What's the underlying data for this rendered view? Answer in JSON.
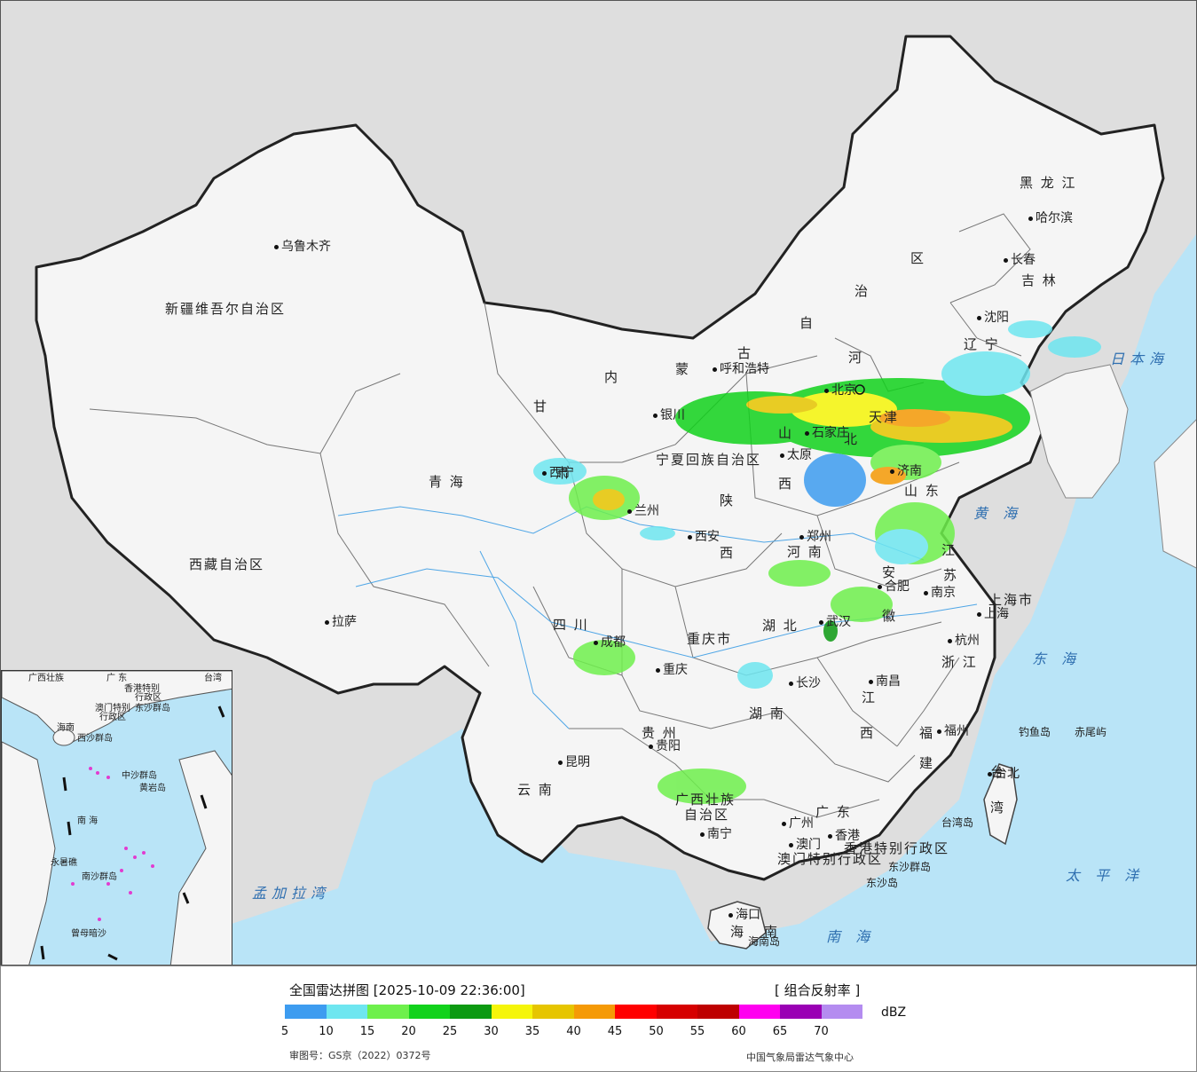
{
  "map": {
    "province_labels": [
      {
        "id": "xinjiang",
        "text": "新疆维吾尔自治区"
      },
      {
        "id": "xizang",
        "text": "西藏自治区"
      },
      {
        "id": "qinghai",
        "text": "青    海"
      },
      {
        "id": "gansu",
        "text": "甘"
      },
      {
        "id": "neimenggu-1",
        "text": "内"
      },
      {
        "id": "neimenggu-2",
        "text": "蒙"
      },
      {
        "id": "neimenggu-3",
        "text": "古"
      },
      {
        "id": "neimenggu-4",
        "text": "自"
      },
      {
        "id": "neimenggu-5",
        "text": "治"
      },
      {
        "id": "neimenggu-6",
        "text": "区"
      },
      {
        "id": "heilongjiang",
        "text": "黑 龙 江"
      },
      {
        "id": "jilin",
        "text": "吉 林"
      },
      {
        "id": "liaoning",
        "text": "辽 宁"
      },
      {
        "id": "hebei-1",
        "text": "河"
      },
      {
        "id": "hebei-2",
        "text": "北"
      },
      {
        "id": "shanxi-1",
        "text": "山"
      },
      {
        "id": "shanxi-2",
        "text": "西"
      },
      {
        "id": "shandong",
        "text": "山 东"
      },
      {
        "id": "ningxia",
        "text": "宁夏回族自治区"
      },
      {
        "id": "shaanxi-1",
        "text": "陕"
      },
      {
        "id": "shaanxi-2",
        "text": "西"
      },
      {
        "id": "henan",
        "text": "河 南"
      },
      {
        "id": "jiangsu-1",
        "text": "江"
      },
      {
        "id": "jiangsu-2",
        "text": "苏"
      },
      {
        "id": "anhui-1",
        "text": "安"
      },
      {
        "id": "anhui-2",
        "text": "徽"
      },
      {
        "id": "shanghai",
        "text": "上海市"
      },
      {
        "id": "hubei",
        "text": "湖  北"
      },
      {
        "id": "sichuan",
        "text": "四  川"
      },
      {
        "id": "chongqing",
        "text": "重庆市"
      },
      {
        "id": "zhejiang",
        "text": "浙 江"
      },
      {
        "id": "hunan",
        "text": "湖   南"
      },
      {
        "id": "jiangxi-1",
        "text": "江"
      },
      {
        "id": "jiangxi-2",
        "text": "西"
      },
      {
        "id": "guizhou",
        "text": "贵 州"
      },
      {
        "id": "fujian-1",
        "text": "福"
      },
      {
        "id": "fujian-2",
        "text": "建"
      },
      {
        "id": "yunnan",
        "text": "云   南"
      },
      {
        "id": "guangxi-1",
        "text": "广西壮族"
      },
      {
        "id": "guangxi-2",
        "text": "自治区"
      },
      {
        "id": "guangdong",
        "text": "广 东"
      },
      {
        "id": "hainan-1",
        "text": "海"
      },
      {
        "id": "hainan-2",
        "text": "南"
      },
      {
        "id": "taiwan-1",
        "text": "台"
      },
      {
        "id": "taiwan-2",
        "text": "湾"
      },
      {
        "id": "hk",
        "text": "香港特别行政区"
      },
      {
        "id": "macau",
        "text": "澳门特别行政区"
      },
      {
        "id": "tianjin",
        "text": "天津"
      },
      {
        "id": "gansu-2",
        "text": "肃"
      }
    ],
    "city_labels": [
      {
        "id": "urumqi",
        "text": "乌鲁木齐"
      },
      {
        "id": "lhasa",
        "text": "拉萨"
      },
      {
        "id": "xining",
        "text": "西宁"
      },
      {
        "id": "lanzhou",
        "text": "兰州"
      },
      {
        "id": "yinchuan",
        "text": "银川"
      },
      {
        "id": "hohhot",
        "text": "呼和浩特"
      },
      {
        "id": "beijing",
        "text": "北京"
      },
      {
        "id": "taiyuan",
        "text": "太原"
      },
      {
        "id": "shijiazhuang",
        "text": "石家庄"
      },
      {
        "id": "jinan",
        "text": "济南"
      },
      {
        "id": "xian",
        "text": "西安"
      },
      {
        "id": "zhengzhou",
        "text": "郑州"
      },
      {
        "id": "hefei",
        "text": "合肥"
      },
      {
        "id": "nanjing",
        "text": "南京"
      },
      {
        "id": "shanghai-city",
        "text": "上海"
      },
      {
        "id": "hangzhou",
        "text": "杭州"
      },
      {
        "id": "wuhan",
        "text": "武汉"
      },
      {
        "id": "chengdu",
        "text": "成都"
      },
      {
        "id": "chongqing-city",
        "text": "重庆"
      },
      {
        "id": "changsha",
        "text": "长沙"
      },
      {
        "id": "nanchang",
        "text": "南昌"
      },
      {
        "id": "guiyang",
        "text": "贵阳"
      },
      {
        "id": "fuzhou",
        "text": "福州"
      },
      {
        "id": "kunming",
        "text": "昆明"
      },
      {
        "id": "nanning",
        "text": "南宁"
      },
      {
        "id": "guangzhou",
        "text": "广州"
      },
      {
        "id": "hongkong",
        "text": "香港"
      },
      {
        "id": "macau-city",
        "text": "澳门"
      },
      {
        "id": "haikou",
        "text": "海口"
      },
      {
        "id": "taipei",
        "text": "台北"
      },
      {
        "id": "shenyang",
        "text": "沈阳"
      },
      {
        "id": "changchun",
        "text": "长春"
      },
      {
        "id": "harbin",
        "text": "哈尔滨"
      }
    ],
    "sea_labels": [
      {
        "id": "sea-japan",
        "text": "日本海"
      },
      {
        "id": "yellow-sea",
        "text": "黄 海"
      },
      {
        "id": "east-sea",
        "text": "东 海"
      },
      {
        "id": "pacific",
        "text": "太 平 洋"
      },
      {
        "id": "south-sea",
        "text": "南    海"
      },
      {
        "id": "bengal",
        "text": "孟加拉湾"
      }
    ],
    "island_labels": [
      {
        "id": "diaoyu",
        "text": "钓鱼岛"
      },
      {
        "id": "chiwei",
        "text": "赤尾屿"
      },
      {
        "id": "taiwan-island",
        "text": "台湾岛"
      },
      {
        "id": "dongsha-islands",
        "text": "东沙群岛"
      },
      {
        "id": "dongsha-island",
        "text": "东沙岛"
      },
      {
        "id": "hainan-island",
        "text": "海南岛"
      }
    ],
    "inset_labels": [
      {
        "id": "i-guangxi",
        "text": "广西壮族"
      },
      {
        "id": "i-guangdong",
        "text": "广 东"
      },
      {
        "id": "i-taiwan",
        "text": "台湾"
      },
      {
        "id": "i-hk",
        "text": "香港特别"
      },
      {
        "id": "i-hk2",
        "text": "行政区"
      },
      {
        "id": "i-macau",
        "text": "澳门特别"
      },
      {
        "id": "i-macau2",
        "text": "行政区"
      },
      {
        "id": "i-dongsha",
        "text": "东沙群岛"
      },
      {
        "id": "i-hainan",
        "text": "海南"
      },
      {
        "id": "i-xisha",
        "text": "西沙群岛"
      },
      {
        "id": "i-zhongsha",
        "text": "中沙群岛"
      },
      {
        "id": "i-huangyan",
        "text": "黄岩岛"
      },
      {
        "id": "i-nanhai",
        "text": "南  海"
      },
      {
        "id": "i-nansha",
        "text": "南沙群岛"
      },
      {
        "id": "i-yongshu",
        "text": "永暑礁"
      },
      {
        "id": "i-zengmu",
        "text": "曾母暗沙"
      }
    ]
  },
  "legend": {
    "title": "全国雷达拼图 [2025-10-09 22:36:00]",
    "product": "[ 组合反射率 ]",
    "unit": "dBZ",
    "colors": [
      "#3d9cf0",
      "#6ee6f0",
      "#6ef04c",
      "#12d21c",
      "#0c9a12",
      "#f5f50a",
      "#e6c500",
      "#f59a06",
      "#ff0000",
      "#d60000",
      "#be0000",
      "#ff00f0",
      "#9a00b4",
      "#b48cf0"
    ],
    "ticks": [
      "5",
      "10",
      "15",
      "20",
      "25",
      "30",
      "35",
      "40",
      "45",
      "50",
      "55",
      "60",
      "65",
      "70"
    ],
    "approval": "审图号：GS京（2022）0372号",
    "agency": "中国气象局雷达气象中心"
  }
}
